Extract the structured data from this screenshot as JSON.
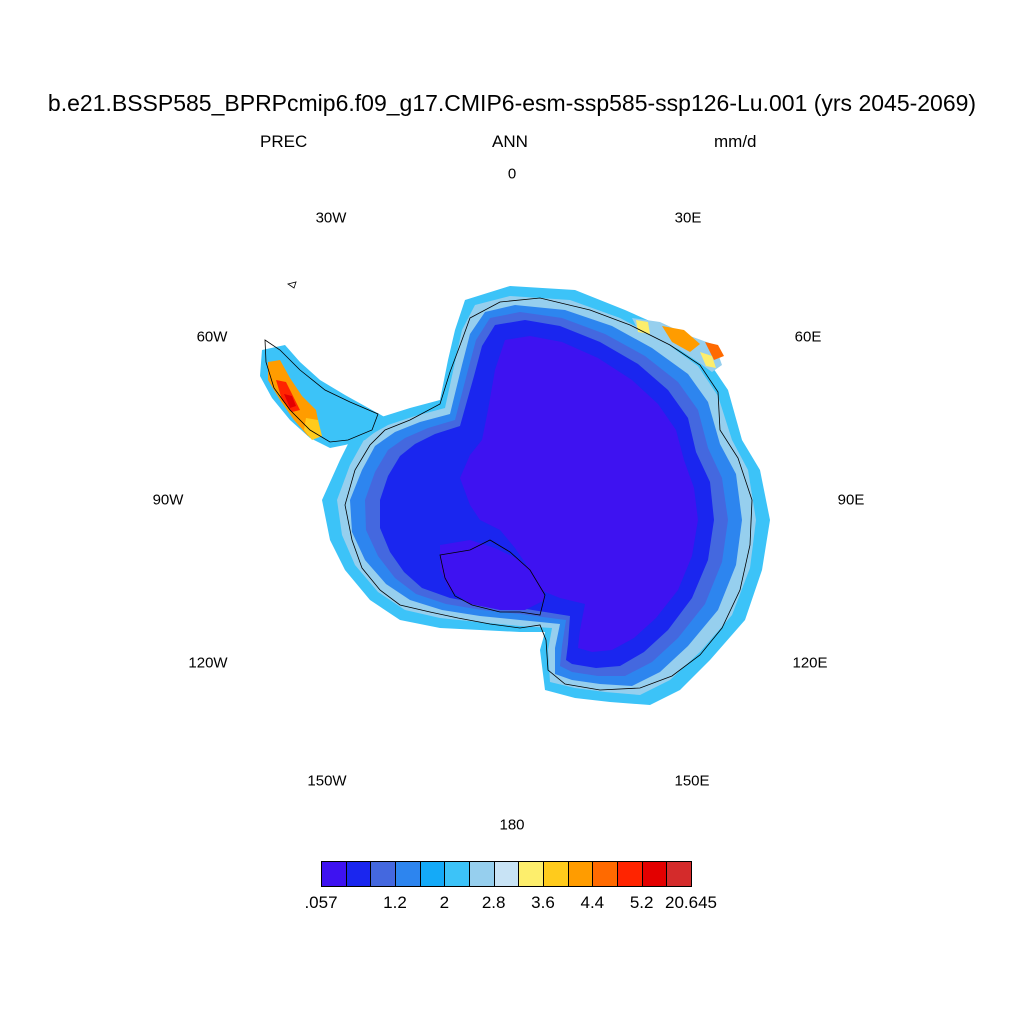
{
  "title": "b.e21.BSSP585_BPRPcmip6.f09_g17.CMIP6-esm-ssp585-ssp126-Lu.001 (yrs 2045-2069)",
  "variable": "PREC",
  "season": "ANN",
  "units": "mm/d",
  "longitude_labels": {
    "lon_0": "0",
    "lon_30e": "30E",
    "lon_60e": "60E",
    "lon_90e": "90E",
    "lon_120e": "120E",
    "lon_150e": "150E",
    "lon_180": "180",
    "lon_150w": "150W",
    "lon_120w": "120W",
    "lon_90w": "90W",
    "lon_60w": "60W",
    "lon_30w": "30W"
  },
  "colorbar": {
    "colors": [
      "#3e12f1",
      "#1a26ef",
      "#4468df",
      "#2d85ef",
      "#14aaf8",
      "#3cc3f8",
      "#96cfee",
      "#c8e3f5",
      "#fdee6c",
      "#ffcb1c",
      "#ff9c00",
      "#ff6a00",
      "#ff2400",
      "#e30000",
      "#d42b2b"
    ],
    "labels": [
      ".057",
      "1.2",
      "2",
      "2.8",
      "3.6",
      "4.4",
      "5.2",
      "20.645"
    ]
  }
}
